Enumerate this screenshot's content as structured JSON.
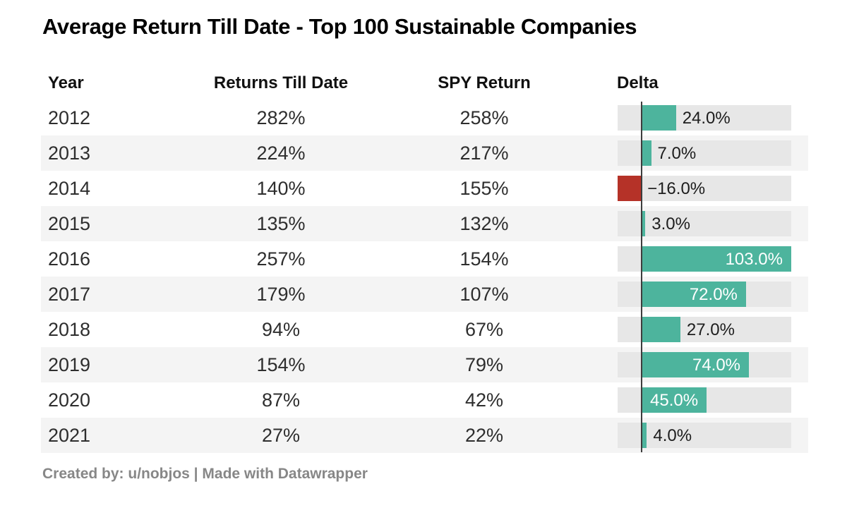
{
  "title": "Average Return Till Date - Top 100 Sustainable Companies",
  "footer_credit": "Created by: u/nobjos | Made with Datawrapper",
  "headers": {
    "year": "Year",
    "returns": "Returns Till Date",
    "spy": "SPY Return",
    "delta": "Delta"
  },
  "chart_data": {
    "type": "table",
    "title": "Average Return Till Date - Top 100 Sustainable Companies",
    "columns": [
      "Year",
      "Returns Till Date",
      "SPY Return",
      "Delta"
    ],
    "rows": [
      {
        "year": "2012",
        "returns_till_date": "282%",
        "spy_return": "258%",
        "delta": 24.0,
        "delta_label": "24.0%"
      },
      {
        "year": "2013",
        "returns_till_date": "224%",
        "spy_return": "217%",
        "delta": 7.0,
        "delta_label": "7.0%"
      },
      {
        "year": "2014",
        "returns_till_date": "140%",
        "spy_return": "155%",
        "delta": -16.0,
        "delta_label": "−16.0%"
      },
      {
        "year": "2015",
        "returns_till_date": "135%",
        "spy_return": "132%",
        "delta": 3.0,
        "delta_label": "3.0%"
      },
      {
        "year": "2016",
        "returns_till_date": "257%",
        "spy_return": "154%",
        "delta": 103.0,
        "delta_label": "103.0%"
      },
      {
        "year": "2017",
        "returns_till_date": "179%",
        "spy_return": "107%",
        "delta": 72.0,
        "delta_label": "72.0%"
      },
      {
        "year": "2018",
        "returns_till_date": "94%",
        "spy_return": "67%",
        "delta": 27.0,
        "delta_label": "27.0%"
      },
      {
        "year": "2019",
        "returns_till_date": "154%",
        "spy_return": "79%",
        "delta": 74.0,
        "delta_label": "74.0%"
      },
      {
        "year": "2020",
        "returns_till_date": "87%",
        "spy_return": "42%",
        "delta": 45.0,
        "delta_label": "45.0%"
      },
      {
        "year": "2021",
        "returns_till_date": "27%",
        "spy_return": "22%",
        "delta": 4.0,
        "delta_label": "4.0%"
      }
    ],
    "delta_bar_axis": {
      "min": -16,
      "max": 103,
      "zero_line": true
    },
    "colors": {
      "positive_bar": "#4db49d",
      "negative_bar": "#b53228",
      "bar_track": "#e7e7e7",
      "row_stripe": "#f4f4f4",
      "label_inside": "#ffffff",
      "label_outside": "#1d1d1d"
    }
  }
}
